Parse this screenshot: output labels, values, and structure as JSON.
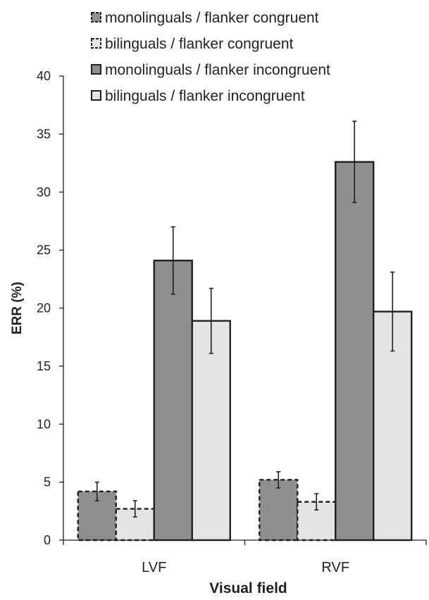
{
  "chart_data": {
    "type": "bar",
    "title": "",
    "xlabel": "Visual field",
    "ylabel": "ERR (%)",
    "ylim": [
      0,
      40
    ],
    "yticks": [
      0,
      5,
      10,
      15,
      20,
      25,
      30,
      35,
      40
    ],
    "grid": false,
    "legend_position": "top-center",
    "categories": [
      "LVF",
      "RVF"
    ],
    "series": [
      {
        "name": "monolinguals / flanker congruent",
        "values": [
          4.2,
          5.2
        ],
        "error": [
          0.8,
          0.7
        ],
        "fill": "#8e8f91",
        "border": "dashed"
      },
      {
        "name": "bilinguals / flanker congruent",
        "values": [
          2.7,
          3.3
        ],
        "error": [
          0.7,
          0.7
        ],
        "fill": "#e3e4e6",
        "border": "dashed"
      },
      {
        "name": "monolinguals / flanker incongruent",
        "values": [
          24.1,
          32.6
        ],
        "error": [
          2.9,
          3.5
        ],
        "fill": "#8e8f91",
        "border": "solid"
      },
      {
        "name": "bilinguals / flanker incongruent",
        "values": [
          18.9,
          19.7
        ],
        "error": [
          2.8,
          3.4
        ],
        "fill": "#e3e4e6",
        "border": "solid"
      }
    ]
  }
}
